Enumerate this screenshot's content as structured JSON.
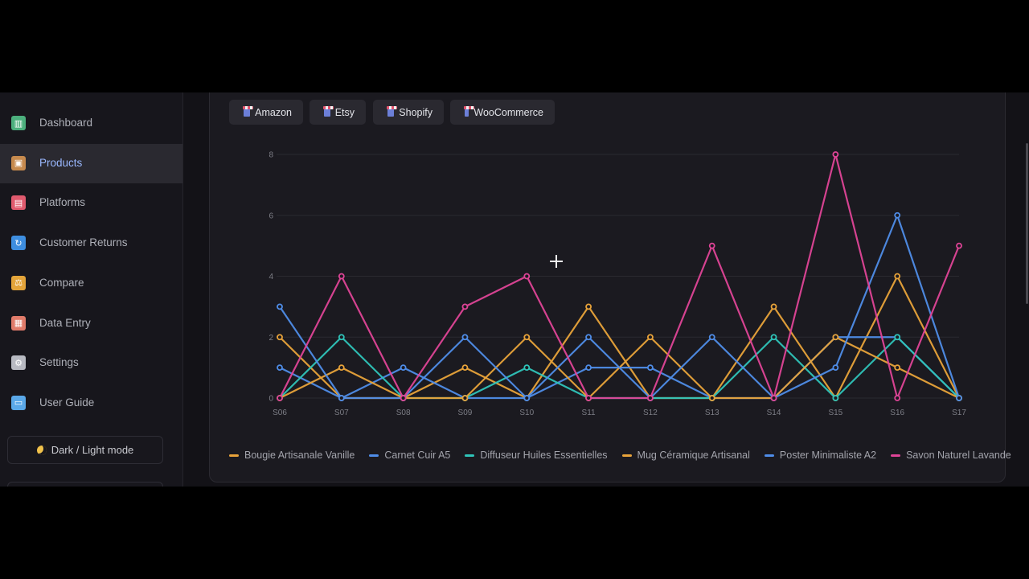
{
  "sidebar": {
    "items": [
      {
        "label": "Dashboard",
        "icon": "bar-chart-icon",
        "color": "#4caf7d"
      },
      {
        "label": "Products",
        "icon": "package-icon",
        "color": "#c68a4e",
        "active": true
      },
      {
        "label": "Platforms",
        "icon": "store-icon",
        "color": "#e05a6e"
      },
      {
        "label": "Customer Returns",
        "icon": "refresh-icon",
        "color": "#3e8ee0"
      },
      {
        "label": "Compare",
        "icon": "scales-icon",
        "color": "#e3a43a"
      },
      {
        "label": "Data Entry",
        "icon": "document-icon",
        "color": "#e07b6a"
      },
      {
        "label": "Settings",
        "icon": "gear-icon",
        "color": "#b8bac2"
      },
      {
        "label": "User Guide",
        "icon": "book-icon",
        "color": "#5aa8e8"
      }
    ],
    "mode_toggle": "Dark / Light mode"
  },
  "platform_tabs": [
    "Amazon",
    "Etsy",
    "Shopify",
    "WooCommerce"
  ],
  "chart_data": {
    "type": "line",
    "x": [
      "S06",
      "S07",
      "S08",
      "S09",
      "S10",
      "S11",
      "S12",
      "S13",
      "S14",
      "S15",
      "S16",
      "S17"
    ],
    "yticks": [
      "0",
      "2",
      "4",
      "6",
      "8"
    ],
    "ylim": [
      0,
      8
    ],
    "grid": true,
    "legend_position": "bottom",
    "series": [
      {
        "name": "Bougie Artisanale Vanille",
        "color": "#e8a33a",
        "values": [
          2,
          0,
          0,
          1,
          0,
          3,
          0,
          0,
          3,
          0,
          4,
          0
        ]
      },
      {
        "name": "Carnet Cuir A5",
        "color": "#4f8de8",
        "values": [
          1,
          0,
          1,
          0,
          0,
          1,
          1,
          0,
          0,
          2,
          2,
          0
        ]
      },
      {
        "name": "Diffuseur Huiles Essentielles",
        "color": "#2fc4b9",
        "values": [
          0,
          2,
          0,
          0,
          1,
          0,
          0,
          0,
          2,
          0,
          2,
          0
        ]
      },
      {
        "name": "Mug Céramique Artisanal",
        "color": "#e8a33a",
        "values": [
          0,
          1,
          0,
          0,
          2,
          0,
          2,
          0,
          0,
          2,
          1,
          0
        ]
      },
      {
        "name": "Poster Minimaliste A2",
        "color": "#4f8de8",
        "values": [
          3,
          0,
          0,
          2,
          0,
          2,
          0,
          2,
          0,
          1,
          6,
          0
        ]
      },
      {
        "name": "Savon Naturel Lavande",
        "color": "#df4497",
        "values": [
          0,
          4,
          0,
          3,
          4,
          0,
          0,
          5,
          0,
          8,
          0,
          5
        ]
      }
    ]
  }
}
